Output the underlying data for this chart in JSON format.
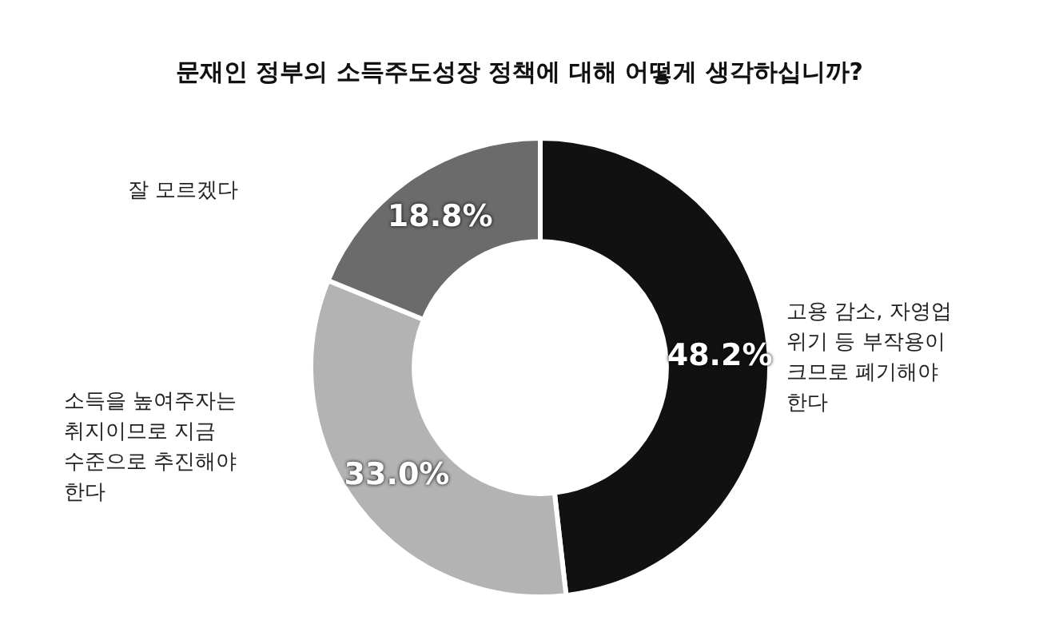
{
  "chart_data": {
    "type": "donut",
    "title": "문재인 정부의 소득주도성장 정책에 대해 어떻게 생각하십니까?",
    "categories": [
      "고용 감소, 자영업 위기 등 부작용이 크므로 폐기해야 한다",
      "소득을 높여주자는 취지이므로 지금 수준으로 추진해야 한다",
      "잘 모르겠다"
    ],
    "values": [
      48.2,
      33.0,
      18.8
    ],
    "colors": [
      "#111111",
      "#b3b3b3",
      "#6b6b6b"
    ],
    "value_labels": [
      "48.2%",
      "33.0%",
      "18.8%"
    ],
    "legend": false
  }
}
